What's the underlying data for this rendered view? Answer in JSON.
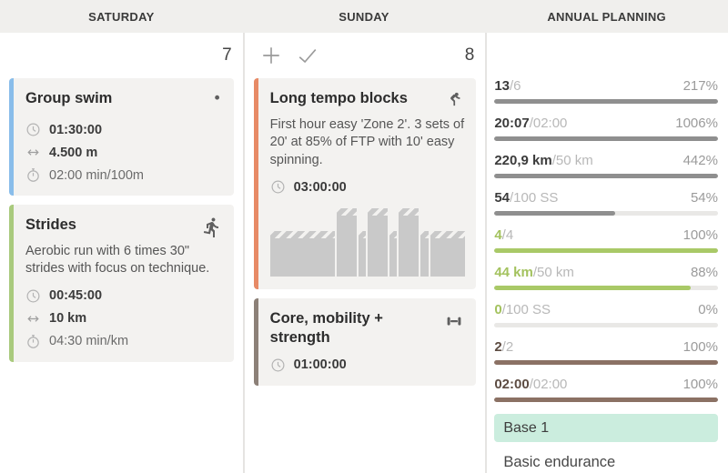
{
  "columns": {
    "saturday": {
      "title": "SATURDAY",
      "count": "7",
      "cards": [
        {
          "title": "Group swim",
          "sport": "swim",
          "accent": "#89bdea",
          "description": "",
          "metrics": [
            {
              "icon": "clock",
              "text": "01:30:00",
              "bold": true
            },
            {
              "icon": "distance",
              "text": "4.500 m",
              "bold": true
            },
            {
              "icon": "stopwatch",
              "text": "02:00 min/100m",
              "bold": false
            }
          ],
          "has_chart": false
        },
        {
          "title": "Strides",
          "sport": "run",
          "accent": "#a9ca7d",
          "description": "Aerobic run with 6 times 30\" strides with focus on technique.",
          "metrics": [
            {
              "icon": "clock",
              "text": "00:45:00",
              "bold": true
            },
            {
              "icon": "distance",
              "text": "10 km",
              "bold": true
            },
            {
              "icon": "stopwatch",
              "text": "04:30 min/km",
              "bold": false
            }
          ],
          "has_chart": false
        }
      ]
    },
    "sunday": {
      "title": "SUNDAY",
      "count": "8",
      "toolbar": {
        "add_icon": "plus",
        "complete_icon": "check"
      },
      "cards": [
        {
          "title": "Long tempo blocks",
          "sport": "bike",
          "accent": "#e78a66",
          "description": "First hour easy 'Zone 2'. 3 sets of 20' at 85% of FTP with 10' easy spinning.",
          "metrics": [
            {
              "icon": "clock",
              "text": "03:00:00",
              "bold": true
            }
          ],
          "has_chart": true
        },
        {
          "title": "Core, mobility + strength",
          "sport": "strength",
          "accent": "#8c8078",
          "description": "",
          "metrics": [
            {
              "icon": "clock",
              "text": "01:00:00",
              "bold": true
            }
          ],
          "has_chart": false
        }
      ]
    },
    "annual": {
      "title": "ANNUAL PLANNING",
      "rows": [
        {
          "value": "13",
          "target": "/6",
          "percent": "217%",
          "fill": 100,
          "theme": "dark"
        },
        {
          "value": "20:07",
          "target": "/02:00",
          "percent": "1006%",
          "fill": 100,
          "theme": "dark"
        },
        {
          "value": "220,9 km",
          "target": "/50 km",
          "percent": "442%",
          "fill": 100,
          "theme": "dark"
        },
        {
          "value": "54",
          "target": "/100 SS",
          "percent": "54%",
          "fill": 54,
          "theme": "dark"
        },
        {
          "value": "4",
          "target": "/4",
          "percent": "100%",
          "fill": 100,
          "theme": "green"
        },
        {
          "value": "44 km",
          "target": "/50 km",
          "percent": "88%",
          "fill": 88,
          "theme": "green"
        },
        {
          "value": "0",
          "target": "/100 SS",
          "percent": "0%",
          "fill": 0,
          "theme": "green"
        },
        {
          "value": "2",
          "target": "/2",
          "percent": "100%",
          "fill": 100,
          "theme": "brown"
        },
        {
          "value": "02:00",
          "target": "/02:00",
          "percent": "100%",
          "fill": 100,
          "theme": "brown"
        }
      ],
      "phase_badge": "Base 1",
      "phase_description": "Basic endurance"
    }
  },
  "chart_data": {
    "type": "bar",
    "title": "Long tempo blocks workout intensity profile",
    "bar_color": "#c9c9c9",
    "segments": [
      {
        "width_pct": 34,
        "height_pct": 64
      },
      {
        "width_pct": 10.5,
        "height_pct": 97
      },
      {
        "width_pct": 4,
        "height_pct": 64
      },
      {
        "width_pct": 10.5,
        "height_pct": 97
      },
      {
        "width_pct": 4,
        "height_pct": 64
      },
      {
        "width_pct": 10.5,
        "height_pct": 97
      },
      {
        "width_pct": 4,
        "height_pct": 64
      },
      {
        "width_pct": 18.5,
        "height_pct": 64
      }
    ]
  },
  "icons": {
    "clock": "clock-icon",
    "distance": "distance-arrow-icon",
    "stopwatch": "stopwatch-icon",
    "swim": "swim-icon",
    "run": "run-icon",
    "bike": "bike-icon",
    "strength": "dumbbell-icon",
    "plus": "plus-icon",
    "check": "check-icon"
  }
}
